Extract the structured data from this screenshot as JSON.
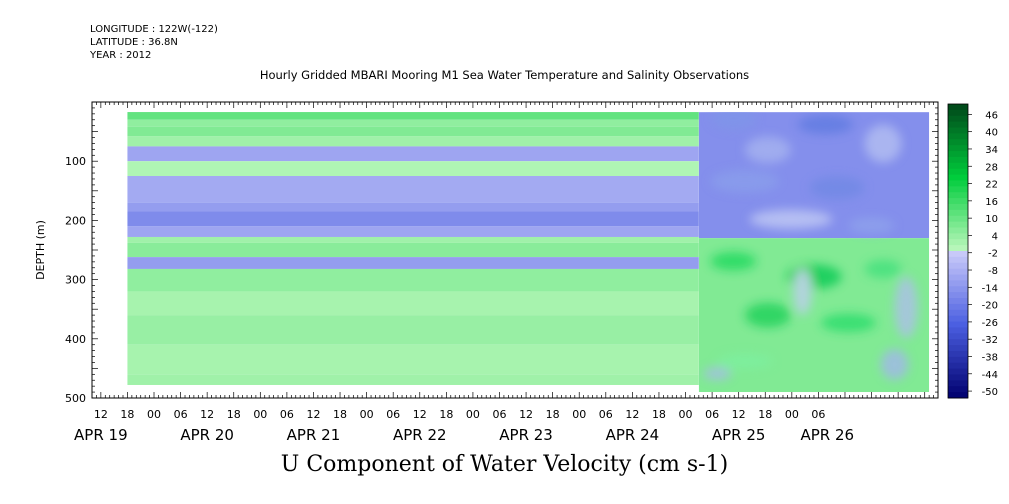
{
  "header": {
    "longitude": "LONGITUDE : 122W(-122)",
    "latitude": "LATITUDE : 36.8N",
    "year": "YEAR : 2012"
  },
  "chart_data": {
    "type": "heatmap",
    "title": "Hourly Gridded MBARI Mooring M1 Sea Water Temperature and Salinity Observations",
    "caption": "U Component of Water Velocity (cm s-1)",
    "ylabel": "DEPTH (m)",
    "ylim": [
      0,
      500
    ],
    "y_inverted": true,
    "y_ticks": [
      100,
      200,
      300,
      400,
      500
    ],
    "x_range_hours": [
      -14,
      177
    ],
    "x_hour_ticks": [
      "12",
      "18",
      "00",
      "06",
      "12",
      "18",
      "00",
      "06",
      "12",
      "18",
      "00",
      "06",
      "12",
      "18",
      "00",
      "06",
      "12",
      "18",
      "00",
      "06",
      "12",
      "18",
      "00",
      "06",
      "12",
      "18",
      "00",
      "06"
    ],
    "x_day_labels": [
      {
        "label": "APR 19",
        "hour": -12
      },
      {
        "label": "APR 20",
        "hour": 12
      },
      {
        "label": "APR 21",
        "hour": 36
      },
      {
        "label": "APR 22",
        "hour": 60
      },
      {
        "label": "APR 23",
        "hour": 84
      },
      {
        "label": "APR 24",
        "hour": 108
      },
      {
        "label": "APR 25",
        "hour": 132
      },
      {
        "label": "APR 26",
        "hour": 152
      }
    ],
    "colorbar_labels": [
      "46",
      "40",
      "34",
      "28",
      "22",
      "16",
      "10",
      "4",
      "-2",
      "-8",
      "-14",
      "-20",
      "-26",
      "-32",
      "-38",
      "-44",
      "-50"
    ],
    "colorbar_range": [
      -50,
      50
    ],
    "data_start_hour": -6,
    "data_change_hour": 123,
    "data_end_hour": 175,
    "constant_period_profile": [
      {
        "depth": [
          17,
          30
        ],
        "value": 12
      },
      {
        "depth": [
          30,
          42
        ],
        "value": 6
      },
      {
        "depth": [
          42,
          58
        ],
        "value": 8
      },
      {
        "depth": [
          58,
          75
        ],
        "value": 4
      },
      {
        "depth": [
          75,
          100
        ],
        "value": -9
      },
      {
        "depth": [
          100,
          125
        ],
        "value": 2
      },
      {
        "depth": [
          125,
          170
        ],
        "value": -8
      },
      {
        "depth": [
          170,
          185
        ],
        "value": -11
      },
      {
        "depth": [
          185,
          210
        ],
        "value": -15
      },
      {
        "depth": [
          210,
          228
        ],
        "value": -9
      },
      {
        "depth": [
          228,
          238
        ],
        "value": 4
      },
      {
        "depth": [
          238,
          262
        ],
        "value": 7
      },
      {
        "depth": [
          262,
          282
        ],
        "value": -11
      },
      {
        "depth": [
          282,
          320
        ],
        "value": 6
      },
      {
        "depth": [
          320,
          360
        ],
        "value": 3
      },
      {
        "depth": [
          360,
          410
        ],
        "value": 5
      },
      {
        "depth": [
          410,
          460
        ],
        "value": 3
      },
      {
        "depth": [
          460,
          478
        ],
        "value": 4
      }
    ],
    "variable_period_regions": [
      {
        "depth": [
          17,
          230
        ],
        "value": -14
      },
      {
        "depth": [
          230,
          490
        ],
        "value": 8
      }
    ]
  }
}
